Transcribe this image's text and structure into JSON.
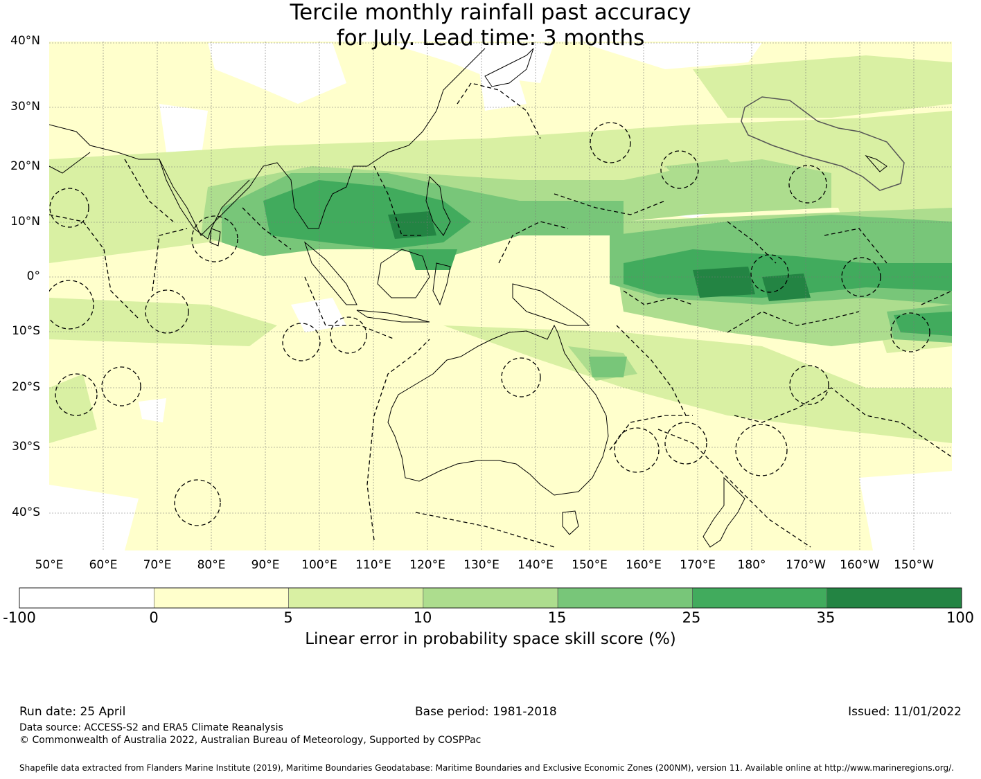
{
  "title_line1": "Tercile monthly rainfall past accuracy",
  "title_line2": "for July. Lead time: 3 months",
  "lat_labels": [
    "40°N",
    "30°N",
    "20°N",
    "10°N",
    "0°",
    "10°S",
    "20°S",
    "30°S",
    "40°S"
  ],
  "lon_labels": [
    "50°E",
    "60°E",
    "70°E",
    "80°E",
    "90°E",
    "100°E",
    "110°E",
    "120°E",
    "130°E",
    "140°E",
    "150°E",
    "160°E",
    "170°E",
    "180°",
    "170°W",
    "160°W",
    "150°W"
  ],
  "colorbar": {
    "ticks": [
      "-100",
      "0",
      "5",
      "10",
      "15",
      "25",
      "35",
      "100"
    ],
    "colors": [
      "#ffffff",
      "#ffffcc",
      "#d9f0a3",
      "#addd8e",
      "#78c679",
      "#41ab5d",
      "#238443"
    ],
    "label": "Linear error in probability space skill score (%)"
  },
  "footer": {
    "run_date": "Run date: 25 April",
    "base_period": "Base period: 1981-2018",
    "issued": "Issued: 11/01/2022",
    "data_source": "Data source: ACCESS-S2 and ERA5 Climate Reanalysis",
    "copyright": "© Commonwealth of Australia 2022, Australian Bureau of Meteorology, Supported by COSPPac",
    "shapefile": "Shapefile data extracted from Flanders Marine Institute (2019), Maritime Boundaries Geodatabase: Maritime Boundaries and Exclusive Economic Zones (200NM), version 11. Available online at http://www.marineregions.org/."
  }
}
